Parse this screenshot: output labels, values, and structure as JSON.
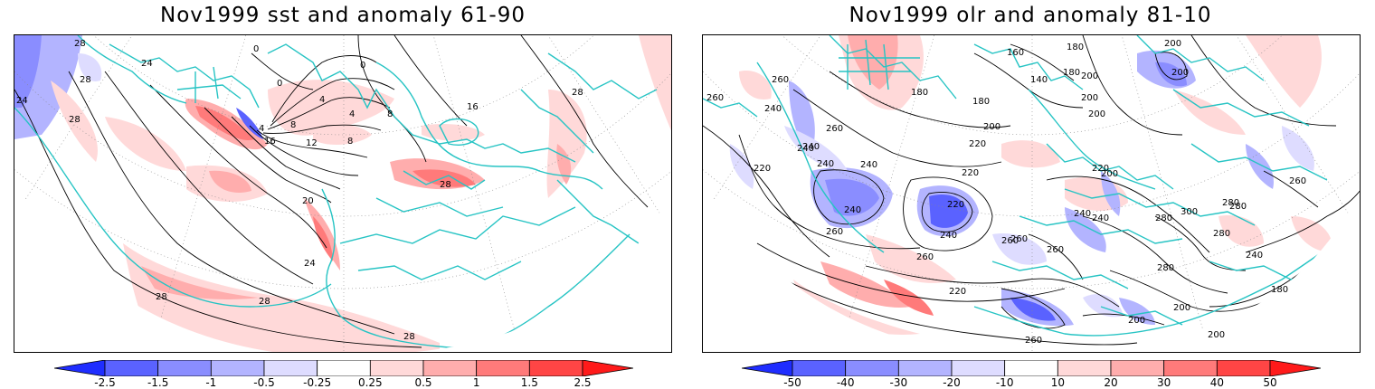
{
  "panels": [
    {
      "title": "Nov1999 sst and anomaly 61-90",
      "colorbar": {
        "labels": [
          "-2.5",
          "-1.5",
          "-1",
          "-0.5",
          "-0.25",
          "0.25",
          "0.5",
          "1",
          "1.5",
          "2.5"
        ],
        "colors": [
          "#1f2dff",
          "#5a62ff",
          "#8a8dff",
          "#b3b4ff",
          "#dedcff",
          "#ffffff",
          "#ffd9d9",
          "#ffadad",
          "#ff7a7a",
          "#ff4545",
          "#ff1a1a"
        ]
      },
      "contour_labels": [
        "0",
        "0",
        "0",
        "4",
        "4",
        "4",
        "8",
        "8",
        "8",
        "12",
        "16",
        "16",
        "20",
        "24",
        "24",
        "24",
        "28",
        "28",
        "28",
        "28",
        "28",
        "28",
        "28",
        "28"
      ]
    },
    {
      "title": "Nov1999 olr and anomaly 81-10",
      "colorbar": {
        "labels": [
          "-50",
          "-40",
          "-30",
          "-20",
          "-10",
          "10",
          "20",
          "30",
          "40",
          "50"
        ],
        "colors": [
          "#1f2dff",
          "#5a62ff",
          "#8a8dff",
          "#b3b4ff",
          "#dedcff",
          "#ffffff",
          "#ffd9d9",
          "#ffadad",
          "#ff7a7a",
          "#ff4545",
          "#ff1a1a"
        ]
      },
      "contour_labels": [
        "160",
        "180",
        "180",
        "200",
        "200",
        "200",
        "200",
        "200",
        "140",
        "180",
        "180",
        "200",
        "220",
        "260",
        "260",
        "240",
        "240",
        "240",
        "220",
        "220",
        "240",
        "240",
        "260",
        "260",
        "220",
        "240",
        "220",
        "280",
        "240",
        "260",
        "220",
        "200",
        "200",
        "180",
        "200",
        "280",
        "300",
        "280",
        "260",
        "240",
        "280",
        "240",
        "200",
        "260",
        "240",
        "260",
        "280",
        "260",
        "260"
      ]
    }
  ],
  "colors": {
    "coast": "#27c4c4",
    "contour": "#000000",
    "frame": "#000000"
  }
}
